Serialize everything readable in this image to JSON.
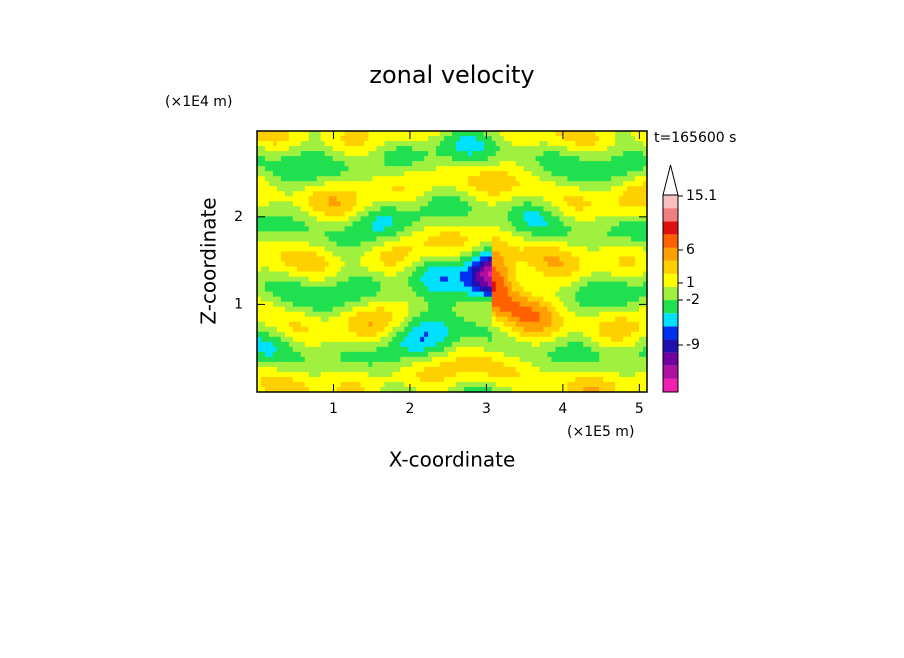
{
  "chart_data": {
    "type": "contour",
    "title": "zonal velocity",
    "x_label": "X-coordinate",
    "y_label": "Z-coordinate",
    "x_unit": "(×1E5 m)",
    "y_unit": "(×1E4 m)",
    "annotation": "t=165600 s",
    "xlim": [
      0,
      5.1
    ],
    "xticks": [
      1,
      2,
      3,
      4,
      5
    ],
    "ylim": [
      0,
      2.98
    ],
    "yticks": [
      1,
      2
    ],
    "colorbar": {
      "colors": [
        "#f020b0",
        "#b010a0",
        "#7000a0",
        "#2010b0",
        "#0030f0",
        "#00e0ff",
        "#20e050",
        "#a0f040",
        "#ffff00",
        "#ffd000",
        "#ffa000",
        "#ff6000",
        "#e01010",
        "#f08080",
        "#f8c0c0"
      ],
      "ticks": [
        15.1,
        6,
        1,
        -2,
        -9
      ]
    }
  }
}
